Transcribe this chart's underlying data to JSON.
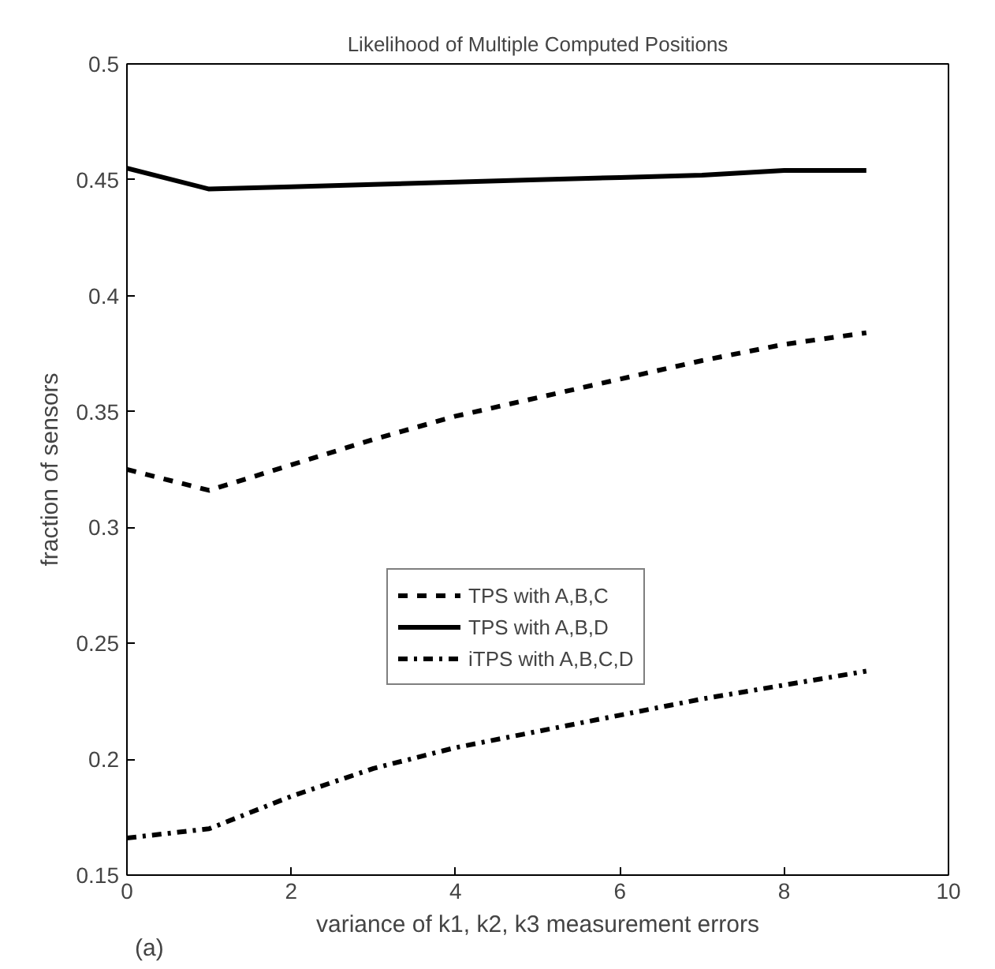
{
  "chart_data": {
    "type": "line",
    "title": "Likelihood of Multiple Computed Positions",
    "xlabel": "variance of k1, k2, k3 measurement errors",
    "ylabel": "fraction of sensors",
    "x": [
      0,
      1,
      2,
      3,
      4,
      5,
      6,
      7,
      8,
      9
    ],
    "series": [
      {
        "name": "TPS with A,B,C",
        "color": "#000000",
        "line_style": "dashed",
        "values": [
          0.325,
          0.316,
          0.327,
          0.338,
          0.348,
          0.356,
          0.364,
          0.372,
          0.379,
          0.384
        ]
      },
      {
        "name": "TPS with A,B,D",
        "color": "#000000",
        "line_style": "solid",
        "values": [
          0.455,
          0.446,
          0.447,
          0.448,
          0.449,
          0.45,
          0.451,
          0.452,
          0.454,
          0.454
        ]
      },
      {
        "name": "iTPS with A,B,C,D",
        "color": "#000000",
        "line_style": "dashdot",
        "values": [
          0.166,
          0.17,
          0.184,
          0.196,
          0.205,
          0.212,
          0.219,
          0.226,
          0.232,
          0.238
        ]
      }
    ],
    "xlim": [
      0,
      10
    ],
    "ylim": [
      0.15,
      0.5
    ],
    "xticks": [
      0,
      2,
      4,
      6,
      8,
      10
    ],
    "yticks": [
      0.15,
      0.2,
      0.25,
      0.3,
      0.35,
      0.4,
      0.45,
      0.5
    ],
    "grid": false,
    "legend": "center",
    "marker": "none",
    "annotations": [
      "(a)"
    ]
  }
}
